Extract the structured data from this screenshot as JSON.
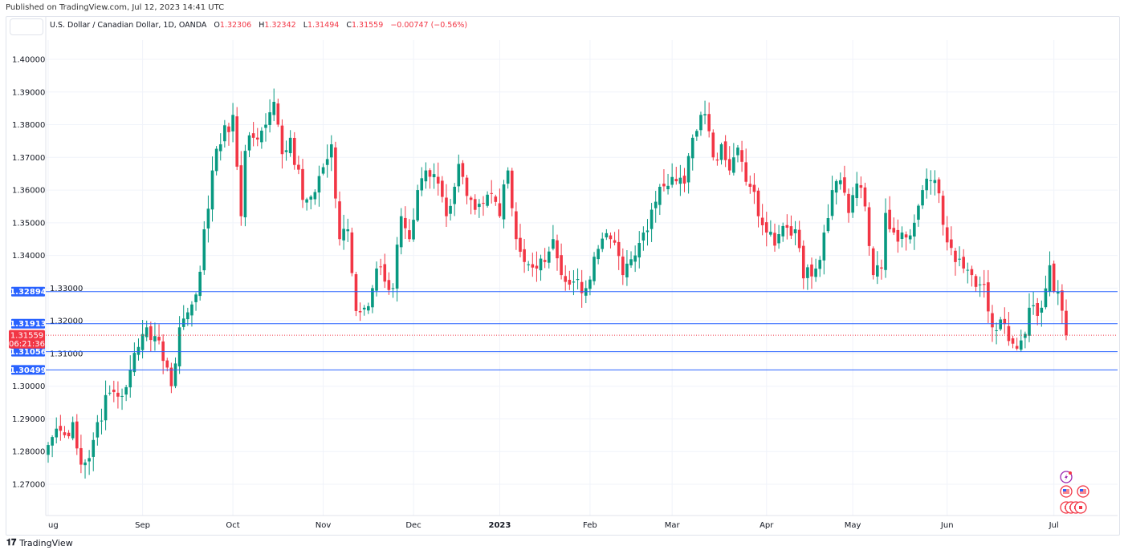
{
  "published": "Published on TradingView.com, Jul 12, 2023 14:41 UTC",
  "legend": {
    "symbol": "U.S. Dollar / Canadian Dollar, 1D, OANDA",
    "open_label": "O",
    "open": "1.32306",
    "high_label": "H",
    "high": "1.32342",
    "low_label": "L",
    "low": "1.31494",
    "close_label": "C",
    "close": "1.31559",
    "change": "−0.00747 (−0.56%)"
  },
  "footer": {
    "brand": "TradingView",
    "logo_icon": "tradingview-logo-icon"
  },
  "colors": {
    "up": "#089981",
    "down": "#f23645",
    "hline": "#2962ff",
    "grid": "#f0f3fa"
  },
  "chart_data": {
    "type": "candlestick",
    "title": "U.S. Dollar / Canadian Dollar, 1D, OANDA",
    "ylim": [
      1.262,
      1.4145
    ],
    "y_ticks": [
      "1.27000",
      "1.28000",
      "1.29000",
      "1.30000",
      "1.31000",
      "1.32000",
      "1.33000",
      "1.34000",
      "1.35000",
      "1.36000",
      "1.37000",
      "1.38000",
      "1.39000",
      "1.40000"
    ],
    "x_ticks": [
      {
        "label": "ug",
        "bar": 0
      },
      {
        "label": "Sep",
        "bar": 23
      },
      {
        "label": "Oct",
        "bar": 45
      },
      {
        "label": "Nov",
        "bar": 67
      },
      {
        "label": "Dec",
        "bar": 89
      },
      {
        "label": "2023",
        "bar": 110
      },
      {
        "label": "Feb",
        "bar": 132
      },
      {
        "label": "Mar",
        "bar": 152
      },
      {
        "label": "Apr",
        "bar": 175
      },
      {
        "label": "May",
        "bar": 196
      },
      {
        "label": "Jun",
        "bar": 219
      },
      {
        "label": "Jul",
        "bar": 245
      }
    ],
    "bars": 249,
    "close_path": [
      [
        0,
        1.282
      ],
      [
        2,
        1.287
      ],
      [
        4,
        1.285
      ],
      [
        6,
        1.289
      ],
      [
        8,
        1.276
      ],
      [
        10,
        1.278
      ],
      [
        12,
        1.289
      ],
      [
        15,
        1.298
      ],
      [
        18,
        1.297
      ],
      [
        20,
        1.305
      ],
      [
        22,
        1.312
      ],
      [
        24,
        1.318
      ],
      [
        27,
        1.314
      ],
      [
        30,
        1.3
      ],
      [
        32,
        1.318
      ],
      [
        35,
        1.325
      ],
      [
        37,
        1.335
      ],
      [
        38,
        1.348
      ],
      [
        40,
        1.366
      ],
      [
        42,
        1.374
      ],
      [
        45,
        1.383
      ],
      [
        47,
        1.352
      ],
      [
        48,
        1.372
      ],
      [
        50,
        1.376
      ],
      [
        53,
        1.38
      ],
      [
        55,
        1.387
      ],
      [
        57,
        1.371
      ],
      [
        59,
        1.376
      ],
      [
        62,
        1.357
      ],
      [
        64,
        1.358
      ],
      [
        67,
        1.367
      ],
      [
        69,
        1.374
      ],
      [
        71,
        1.345
      ],
      [
        73,
        1.348
      ],
      [
        75,
        1.323
      ],
      [
        77,
        1.324
      ],
      [
        79,
        1.33
      ],
      [
        80,
        1.336
      ],
      [
        82,
        1.332
      ],
      [
        84,
        1.33
      ],
      [
        86,
        1.352
      ],
      [
        88,
        1.345
      ],
      [
        90,
        1.36
      ],
      [
        92,
        1.366
      ],
      [
        95,
        1.362
      ],
      [
        97,
        1.352
      ],
      [
        100,
        1.368
      ],
      [
        103,
        1.357
      ],
      [
        106,
        1.356
      ],
      [
        108,
        1.359
      ],
      [
        110,
        1.352
      ],
      [
        112,
        1.366
      ],
      [
        114,
        1.345
      ],
      [
        116,
        1.338
      ],
      [
        119,
        1.336
      ],
      [
        121,
        1.338
      ],
      [
        123,
        1.345
      ],
      [
        125,
        1.334
      ],
      [
        128,
        1.332
      ],
      [
        131,
        1.33
      ],
      [
        134,
        1.342
      ],
      [
        137,
        1.345
      ],
      [
        140,
        1.334
      ],
      [
        143,
        1.34
      ],
      [
        145,
        1.347
      ],
      [
        147,
        1.354
      ],
      [
        149,
        1.361
      ],
      [
        152,
        1.364
      ],
      [
        155,
        1.362
      ],
      [
        157,
        1.376
      ],
      [
        159,
        1.383
      ],
      [
        161,
        1.378
      ],
      [
        162,
        1.37
      ],
      [
        164,
        1.374
      ],
      [
        166,
        1.366
      ],
      [
        168,
        1.373
      ],
      [
        171,
        1.361
      ],
      [
        173,
        1.352
      ],
      [
        175,
        1.347
      ],
      [
        177,
        1.343
      ],
      [
        179,
        1.349
      ],
      [
        182,
        1.348
      ],
      [
        184,
        1.333
      ],
      [
        187,
        1.336
      ],
      [
        189,
        1.347
      ],
      [
        191,
        1.36
      ],
      [
        193,
        1.363
      ],
      [
        195,
        1.353
      ],
      [
        197,
        1.362
      ],
      [
        199,
        1.355
      ],
      [
        201,
        1.334
      ],
      [
        203,
        1.336
      ],
      [
        204,
        1.353
      ],
      [
        206,
        1.347
      ],
      [
        208,
        1.347
      ],
      [
        211,
        1.35
      ],
      [
        213,
        1.36
      ],
      [
        215,
        1.363
      ],
      [
        217,
        1.359
      ],
      [
        219,
        1.344
      ],
      [
        222,
        1.339
      ],
      [
        225,
        1.334
      ],
      [
        228,
        1.331
      ],
      [
        230,
        1.318
      ],
      [
        233,
        1.319
      ],
      [
        235,
        1.313
      ],
      [
        237,
        1.314
      ],
      [
        239,
        1.324
      ],
      [
        242,
        1.324
      ],
      [
        244,
        1.337
      ],
      [
        245,
        1.329
      ],
      [
        246,
        1.3289
      ],
      [
        247,
        1.3231
      ],
      [
        248,
        1.31559
      ]
    ],
    "horizontal_lines": [
      {
        "label": "1.32894",
        "value": 1.32894
      },
      {
        "label": "1.31913",
        "value": 1.31913
      },
      {
        "label": "1.31056",
        "value": 1.31056
      },
      {
        "label": "1.30499",
        "value": 1.30499
      }
    ],
    "last_price": {
      "label": "1.31559",
      "value": 1.31559,
      "countdown": "06:21:36"
    },
    "event_icons": [
      "earnings-flash-icon",
      "us-flag-icon",
      "us-flag-icon",
      "ca-flag-icon"
    ]
  }
}
